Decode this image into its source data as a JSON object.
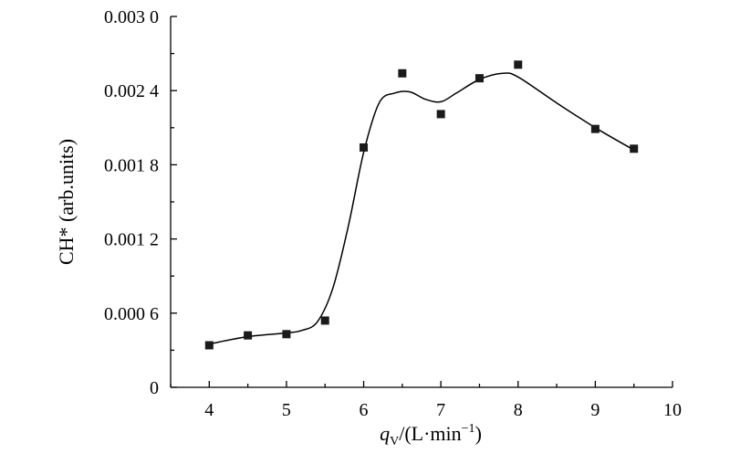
{
  "chart_data": {
    "type": "scatter",
    "title": "",
    "xlabel_var": "q",
    "xlabel_sub": "V",
    "xlabel_unit": "/(L·min",
    "xlabel_sup": "−1",
    "xlabel_close": ")",
    "ylabel": "CH* (arb.units)",
    "xlim": [
      3.5,
      10
    ],
    "ylim": [
      0,
      0.003
    ],
    "xticks": [
      4,
      5,
      6,
      7,
      8,
      9,
      10
    ],
    "xtick_labels": [
      "4",
      "5",
      "6",
      "7",
      "8",
      "9",
      "10"
    ],
    "yticks": [
      0,
      0.0006,
      0.0012,
      0.0018,
      0.0024,
      0.003
    ],
    "ytick_labels": [
      "0",
      "0.000 6",
      "0.001 2",
      "0.001 8",
      "0.002 4",
      "0.003 0"
    ],
    "grid": false,
    "series": [
      {
        "x": [
          4,
          4.5,
          5,
          5.5,
          6,
          6.5,
          7,
          7.5,
          8,
          9,
          9.5
        ],
        "y": [
          0.00034,
          0.00042,
          0.00043,
          0.00054,
          0.00194,
          0.00254,
          0.00221,
          0.0025,
          0.00261,
          0.00209,
          0.00193
        ],
        "marker": "square",
        "color": "#1a1a1a"
      }
    ],
    "fit_curve": {
      "x": [
        4,
        4.5,
        5,
        5.2,
        5.4,
        5.6,
        5.8,
        6,
        6.2,
        6.4,
        6.6,
        6.8,
        7,
        7.2,
        7.5,
        7.8,
        8,
        8.5,
        9,
        9.5
      ],
      "y": [
        0.00035,
        0.00041,
        0.00044,
        0.00046,
        0.00053,
        0.0008,
        0.0013,
        0.0019,
        0.0023,
        0.00238,
        0.00239,
        0.00233,
        0.00231,
        0.00238,
        0.00249,
        0.00254,
        0.00251,
        0.0023,
        0.0021,
        0.00192
      ],
      "color": "#000000"
    }
  }
}
